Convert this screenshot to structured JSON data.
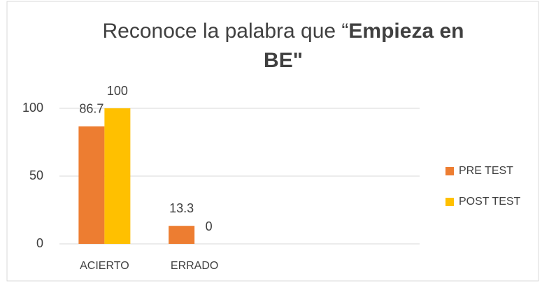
{
  "chart_data": {
    "type": "bar",
    "title": [
      "Reconoce la palabra que “",
      "Empieza en",
      "BE\""
    ],
    "categories": [
      "ACIERTO",
      "ERRADO",
      null,
      null
    ],
    "series": [
      {
        "name": "PRE TEST",
        "color": "#ed7d31",
        "values": [
          86.7,
          13.3,
          null,
          null
        ]
      },
      {
        "name": "POST TEST",
        "color": "#ffc000",
        "values": [
          100,
          0,
          null,
          null
        ]
      }
    ],
    "ylim": [
      0,
      100
    ],
    "yticks": [
      0,
      50,
      100
    ],
    "grid": true,
    "legend": "right"
  }
}
